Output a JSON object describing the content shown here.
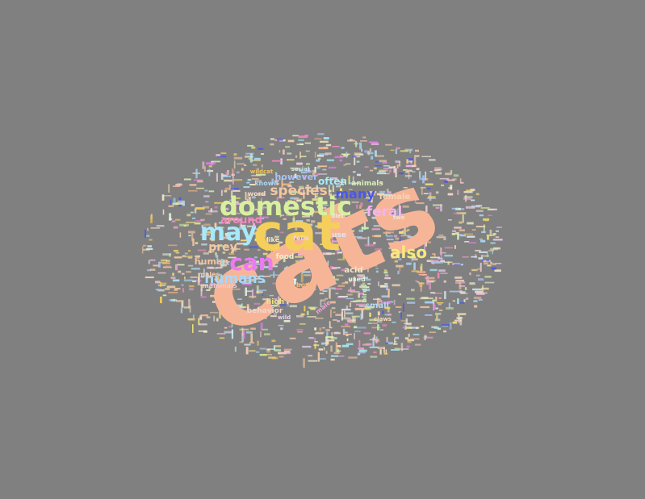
{
  "background_color": "#808080",
  "words": [
    {
      "text": "cats",
      "color": "#f7b598"
    },
    {
      "text": "cat",
      "color": "#f5cf5b"
    },
    {
      "text": "domestic",
      "color": "#d8f09e"
    },
    {
      "text": "may",
      "color": "#a6e9fb"
    },
    {
      "text": "can",
      "color": "#ea7bf2"
    },
    {
      "text": "species",
      "color": "#f6c69f"
    },
    {
      "text": "many",
      "color": "#4b57e6"
    },
    {
      "text": "feral",
      "color": "#f3b4ec"
    },
    {
      "text": "also",
      "color": "#f7ea7a"
    },
    {
      "text": "humans",
      "color": "#a8d8f8"
    },
    {
      "text": "around",
      "color": "#f488bd"
    },
    {
      "text": "prey",
      "color": "#f6c79e"
    },
    {
      "text": "often",
      "color": "#a6edf8"
    },
    {
      "text": "however",
      "color": "#a9c3f3"
    },
    {
      "text": "human",
      "color": "#f4c6a4"
    },
    {
      "text": "female",
      "color": "#f6d6b6"
    },
    {
      "text": "animals",
      "color": "#d6f0b2"
    },
    {
      "text": "acid",
      "color": "#f3e8c6"
    },
    {
      "text": "small",
      "color": "#b3d9f2"
    },
    {
      "text": "behavior",
      "color": "#f3d6c8"
    },
    {
      "text": "high",
      "color": "#f1e18a"
    },
    {
      "text": "use",
      "color": "#d9e8f3"
    },
    {
      "text": "food",
      "color": "#f5f0c8"
    },
    {
      "text": "males",
      "color": "#f3c9a8"
    },
    {
      "text": "mammals",
      "color": "#f1c7c9"
    },
    {
      "text": "used",
      "color": "#e6f2e0"
    },
    {
      "text": "birds",
      "color": "#c8f2b0"
    },
    {
      "text": "word",
      "color": "#f6d8c8"
    },
    {
      "text": "known",
      "color": "#aad6f3"
    },
    {
      "text": "felis",
      "color": "#f6d3e2"
    },
    {
      "text": "like",
      "color": "#f2e9b8"
    },
    {
      "text": "body",
      "color": "#f5b57f"
    },
    {
      "text": "male",
      "color": "#f0a2d0"
    },
    {
      "text": "wild",
      "color": "#e8d2f4"
    },
    {
      "text": "wildcat",
      "color": "#f6c25a"
    },
    {
      "text": "social",
      "color": "#c9e6f1"
    },
    {
      "text": "two",
      "color": "#f0e3d3"
    },
    {
      "text": "diet",
      "color": "#e4f3d9"
    },
    {
      "text": "claws",
      "color": "#f6dcb3"
    }
  ]
}
